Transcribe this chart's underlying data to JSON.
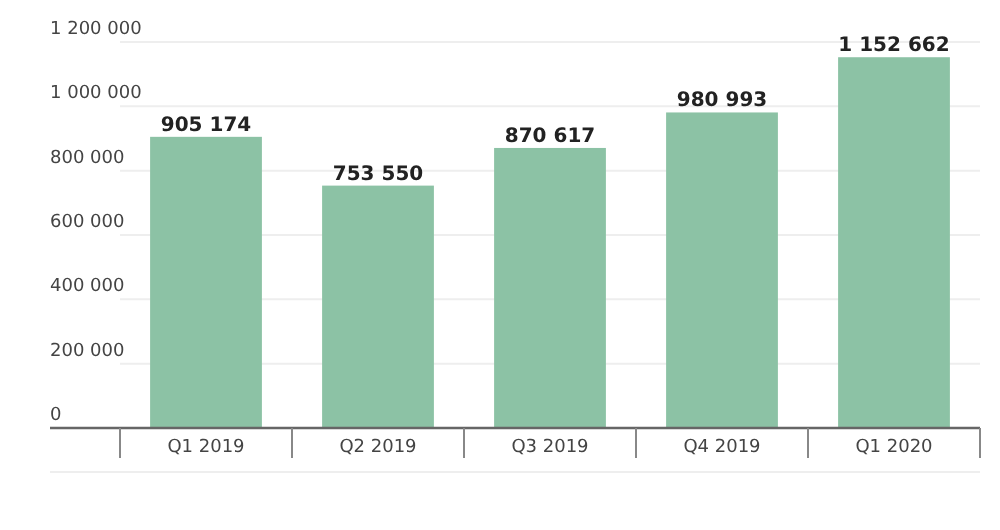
{
  "chart_data": {
    "type": "bar",
    "categories": [
      "Q1 2019",
      "Q2 2019",
      "Q3 2019",
      "Q4 2019",
      "Q1 2020"
    ],
    "values": [
      905174,
      753550,
      870617,
      980993,
      1152662
    ],
    "value_labels": [
      "905 174",
      "753 550",
      "870 617",
      "980 993",
      "1 152 662"
    ],
    "color": "#8cc2a5",
    "ylim": [
      0,
      1200000
    ],
    "yticks": [
      {
        "value": 0,
        "label": "0"
      },
      {
        "value": 200000,
        "label": "200 000"
      },
      {
        "value": 400000,
        "label": "400 000"
      },
      {
        "value": 600000,
        "label": "600 000"
      },
      {
        "value": 800000,
        "label": "800 000"
      },
      {
        "value": 1000000,
        "label": "1 000 000"
      },
      {
        "value": 1200000,
        "label": "1 200 000"
      }
    ],
    "grid": "y"
  }
}
